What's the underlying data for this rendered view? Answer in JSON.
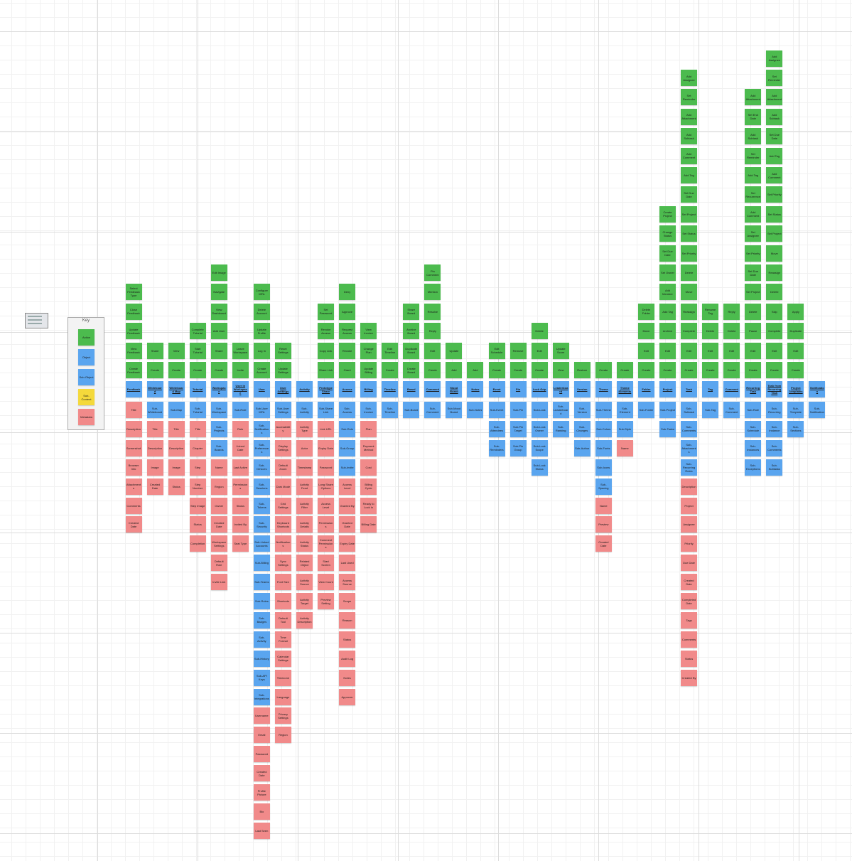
{
  "key": {
    "title": "Key",
    "items": [
      {
        "label": "Action",
        "kind": "action"
      },
      {
        "label": "Object",
        "kind": "object"
      },
      {
        "label": "Sub-Object",
        "kind": "object"
      },
      {
        "label": "Sub-Content",
        "kind": "content"
      },
      {
        "label": "Metadata",
        "kind": "metadata"
      }
    ]
  },
  "columns": [
    {
      "object": "Feedback",
      "actions": [
        "Create Feedback",
        "View Feedback",
        "Update Feedback",
        "Close Feedback",
        "Select Feedback Type"
      ],
      "subobjects": [],
      "metadata": [
        "Title",
        "Description",
        "Screenshot",
        "Browser Info",
        "Attachments",
        "Comments",
        "Created Date"
      ]
    },
    {
      "object": "Whiteboard",
      "actions": [
        "Create",
        "Share"
      ],
      "subobjects": [
        "Sub-Whiteboard"
      ],
      "metadata": [
        "Title",
        "Description",
        "Image",
        "Created Date"
      ]
    },
    {
      "object": "Whiteboard Map",
      "actions": [
        "Create",
        "View"
      ],
      "subobjects": [
        "Sub-Map"
      ],
      "metadata": [
        "Title",
        "Description",
        "Image",
        "Status"
      ]
    },
    {
      "object": "Tutorial",
      "actions": [
        "Create",
        "Start Tutorial",
        "Complete Tutorial"
      ],
      "subobjects": [
        "Sub-Tutorial"
      ],
      "metadata": [
        "Title",
        "Chapter",
        "Step",
        "Step Number",
        "Step Image",
        "Status",
        "Completion"
      ]
    },
    {
      "object": "Workspace",
      "actions": [
        "Create",
        "Share",
        "Add User",
        "View Dashboard",
        "Navigate",
        "Edit Image"
      ],
      "subobjects": [
        "Sub-Workspace",
        "Sub-Projects",
        "Sub-Boards"
      ],
      "metadata": [
        "Name",
        "Region",
        "Owner",
        "Created Date",
        "Workspace Settings",
        "Default Role",
        "Invite Link"
      ]
    },
    {
      "object": "User in Workspace",
      "actions": [
        "Invite",
        "Leave Workspace"
      ],
      "subobjects": [
        "Sub-Role"
      ],
      "metadata": [
        "Role",
        "Joined Date",
        "Last Active",
        "Permissions",
        "Status",
        "Invited By",
        "Seat Type"
      ]
    },
    {
      "object": "User",
      "actions": [
        "Create Account",
        "Log In",
        "Update Profile",
        "Delete Account",
        "Configure MFA"
      ],
      "subobjects": [
        "Sub-User MFA",
        "Sub-Notifications",
        "Sub-Preferences",
        "Sub-Devices",
        "Sub-Sessions",
        "Sub-Tokens",
        "Sub-Security",
        "Sub-Linked Accounts",
        "Sub-Billing",
        "Sub-Teams",
        "Sub-Roles",
        "Sub-Badges",
        "Sub-Activity",
        "Sub-History",
        "Sub-API Keys",
        "Sub-Integrations"
      ],
      "metadata": [
        "Username",
        "Email",
        "Password",
        "Created Date",
        "Profile Picture",
        "Bio",
        "Last Seen"
      ]
    },
    {
      "object": "User Settings",
      "actions": [
        "Update Settings",
        "Reset Settings"
      ],
      "subobjects": [
        "Sub-User Settings"
      ],
      "metadata": [
        "Accessibility",
        "Display Settings",
        "Default Zoom",
        "Dark Mode",
        "Grid Settings",
        "Keyboard Shortcuts",
        "Notifications",
        "Sync Settings",
        "Font Size",
        "Shortcuts",
        "Default Tool",
        "Time Format",
        "Calendar Settings",
        "Timezone",
        "Language",
        "Privacy Settings",
        "Region"
      ]
    },
    {
      "object": "Activity",
      "actions": [],
      "subobjects": [
        "Sub-Activity"
      ],
      "metadata": [
        "Activity Type",
        "Actor",
        "Timestamp",
        "Activity Feed",
        "Activity Filter",
        "Activity Details",
        "Activity Status",
        "Related Object",
        "Activity Source",
        "Activity Target",
        "Activity Description"
      ]
    },
    {
      "object": "Prototype Share",
      "actions": [
        "Share Link",
        "Copy Link",
        "Revoke Access",
        "Set Password"
      ],
      "subobjects": [
        "Sub-Share Link"
      ],
      "metadata": [
        "Link URL",
        "Expiry Date",
        "Password",
        "Long Share Options",
        "Access Level",
        "Permissions",
        "Comment Permissions",
        "Start Screen",
        "View Count",
        "Preview Setting"
      ]
    },
    {
      "object": "Access",
      "actions": [
        "Grant",
        "Revoke",
        "Request Access",
        "Approve",
        "Deny"
      ],
      "subobjects": [
        "Sub-Access",
        "Sub-Role",
        "Sub-Group",
        "Sub-Invite"
      ],
      "metadata": [
        "Access Level",
        "Granted By",
        "Granted Date",
        "Expiry Date",
        "Last Used",
        "Access Source",
        "Scope",
        "Reason",
        "Status",
        "Audit Log",
        "Notes",
        "Approver"
      ]
    },
    {
      "object": "Billing",
      "actions": [
        "Update Billing",
        "Change Plan",
        "View Invoice"
      ],
      "subobjects": [
        "Sub-Invoice"
      ],
      "metadata": [
        "Plan",
        "Payment Method",
        "Cost",
        "Billing Cycle",
        "Ready to Lock In",
        "Billing Date"
      ]
    },
    {
      "object": "Timeline",
      "actions": [
        "Create",
        "Edit Timeline"
      ],
      "subobjects": [
        "Sub-Timeline"
      ],
      "metadata": []
    },
    {
      "object": "Board",
      "actions": [
        "Create Board",
        "Duplicate Board",
        "Archive Board",
        "Share Board"
      ],
      "subobjects": [
        "Sub-Board"
      ],
      "metadata": []
    },
    {
      "object": "Comment",
      "actions": [
        "Create",
        "Edit",
        "Reply",
        "Resolve",
        "Mention",
        "Pin Comment"
      ],
      "subobjects": [
        "Sub-Comment"
      ],
      "metadata": []
    },
    {
      "object": "Mood Board",
      "actions": [
        "Add",
        "Update"
      ],
      "subobjects": [
        "Sub-Mood Board"
      ],
      "metadata": []
    },
    {
      "object": "Notes",
      "actions": [
        "Add"
      ],
      "subobjects": [
        "Sub-Notes"
      ],
      "metadata": []
    },
    {
      "object": "Event",
      "actions": [
        "Create",
        "Edit Schedule"
      ],
      "subobjects": [
        "Sub-Event",
        "Sub-Attendees",
        "Sub-Reminders"
      ],
      "metadata": []
    },
    {
      "object": "Pin",
      "actions": [
        "Create",
        "Remove"
      ],
      "subobjects": [
        "Sub-Pin",
        "Sub-Pin Target",
        "Sub-Pin Group"
      ],
      "metadata": []
    },
    {
      "object": "Lock Grip",
      "actions": [
        "Create",
        "Edit",
        "Delete"
      ],
      "subobjects": [
        "Sub-Lock",
        "Sub-Lock Owner",
        "Sub-Lock Scope",
        "Sub-Lock Status"
      ],
      "metadata": []
    },
    {
      "object": "Leaderboard",
      "actions": [
        "View",
        "Update Score"
      ],
      "subobjects": [
        "Sub-Leaderboard",
        "Sub-Ranking"
      ],
      "metadata": []
    },
    {
      "object": "Version",
      "actions": [
        "Restore"
      ],
      "subobjects": [
        "Sub-Version",
        "Sub-Changes",
        "Sub-Author"
      ],
      "metadata": []
    },
    {
      "object": "Theme",
      "actions": [
        "Create"
      ],
      "subobjects": [
        "Sub-Theme",
        "Sub-Colors",
        "Sub-Fonts",
        "Sub-Icons",
        "Sub-Spacing"
      ],
      "metadata": [
        "Name",
        "Preview",
        "Created Date"
      ]
    },
    {
      "object": "Theme Elements",
      "actions": [
        "Create"
      ],
      "subobjects": [
        "Sub-Element",
        "Sub-Style"
      ],
      "metadata": [
        "Name"
      ]
    },
    {
      "object": "Folder",
      "actions": [
        "Create",
        "Edit",
        "Move",
        "Delete Folder"
      ],
      "subobjects": [
        "Sub-Folder"
      ],
      "metadata": []
    },
    {
      "object": "Project",
      "actions": [
        "Create",
        "Edit",
        "Archive",
        "Add Tag",
        "Add Member",
        "Set Owner",
        "Set Due Date",
        "Change Status",
        "Create Project"
      ],
      "subobjects": [
        "Sub-Project",
        "Sub-Tasks"
      ],
      "metadata": []
    },
    {
      "object": "Task",
      "actions": [
        "Create",
        "Edit",
        "Complete",
        "Reassign",
        "Move",
        "Delete",
        "Set Priority",
        "Set Status",
        "Set Project",
        "Set Due Date",
        "Add Tag",
        "Add Comment",
        "Add Subtask",
        "Add Attachment",
        "Set Reminder",
        "Add Assignee"
      ],
      "subobjects": [
        "Sub-Subtask",
        "Sub-Comments",
        "Sub-Attachments",
        "Sub-Recurring Rules"
      ],
      "metadata": [
        "Description",
        "Project",
        "Assignee",
        "Priority",
        "Due Date",
        "Created Date",
        "Completed Date",
        "Tags",
        "Comments",
        "Status",
        "Created By"
      ]
    },
    {
      "object": "Tag",
      "actions": [
        "Create",
        "Edit",
        "Delete",
        "Rename Tag"
      ],
      "subobjects": [
        "Sub-Tag"
      ],
      "metadata": []
    },
    {
      "object": "Comment",
      "actions": [
        "Create",
        "Edit",
        "Delete",
        "Reply"
      ],
      "subobjects": [
        "Sub-Comment"
      ],
      "metadata": []
    },
    {
      "object": "Recurring Task",
      "actions": [
        "Create",
        "Edit",
        "Pause",
        "Delete",
        "Set Project",
        "Set Due Date",
        "Set Priority",
        "Set Assignee",
        "Add Comment",
        "Set Recurrence",
        "Add Tag",
        "Set Reminder",
        "Add Subtask",
        "Set End Date",
        "Add Attachment"
      ],
      "subobjects": [
        "Sub-Rule",
        "Sub-Schedule",
        "Sub-Instances",
        "Sub-Exceptions"
      ],
      "metadata": []
    },
    {
      "object": "Task from Recurring Task",
      "actions": [
        "Create",
        "Edit",
        "Complete",
        "Skip",
        "Delete",
        "Reassign",
        "Move",
        "Set Project",
        "Set Status",
        "Set Priority",
        "Add Comment",
        "Add Tag",
        "Set Due Date",
        "Add Subtask",
        "Add Attachment",
        "Set Reminder",
        "Add Assignee"
      ],
      "subobjects": [
        "Sub-Recurring",
        "Sub-Instance",
        "Sub-Comments",
        "Sub-Subtasks"
      ],
      "metadata": []
    },
    {
      "object": "Project Templates",
      "actions": [
        "Create",
        "Edit",
        "Duplicate",
        "Apply"
      ],
      "subobjects": [
        "Sub-Template",
        "Sub-Sections"
      ],
      "metadata": []
    },
    {
      "object": "Notification",
      "actions": [],
      "subobjects": [
        "Sub-Notification"
      ],
      "metadata": []
    }
  ]
}
